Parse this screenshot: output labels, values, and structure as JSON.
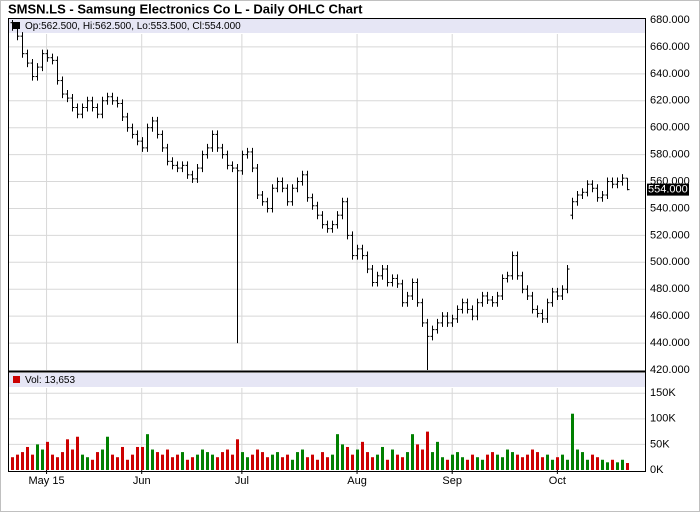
{
  "chart_data": {
    "type": "ohlc",
    "title": "SMSN.LS - Samsung Electronics Co L - Daily OHLC Chart",
    "info": "Op:562.500, Hi:562.500, Lo:553.500, Cl:554.000",
    "last_label": "554.000",
    "grid": true,
    "xlim": [
      -0.5,
      126.5
    ],
    "xticks": [
      {
        "value": 7,
        "label": "May 15"
      },
      {
        "value": 26,
        "label": "Jun"
      },
      {
        "value": 46,
        "label": "Jul"
      },
      {
        "value": 69,
        "label": "Aug"
      },
      {
        "value": 88,
        "label": "Sep"
      },
      {
        "value": 109,
        "label": "Oct"
      }
    ],
    "ylim": [
      420,
      680
    ],
    "yticks": [
      {
        "value": 420,
        "label": "420.000"
      },
      {
        "value": 440,
        "label": "440.000"
      },
      {
        "value": 460,
        "label": "460.000"
      },
      {
        "value": 480,
        "label": "480.000"
      },
      {
        "value": 500,
        "label": "500.000"
      },
      {
        "value": 520,
        "label": "520.000"
      },
      {
        "value": 540,
        "label": "540.000"
      },
      {
        "value": 560,
        "label": "560.000"
      },
      {
        "value": 580,
        "label": "580.000"
      },
      {
        "value": 600,
        "label": "600.000"
      },
      {
        "value": 620,
        "label": "620.000"
      },
      {
        "value": 640,
        "label": "640.000"
      },
      {
        "value": 660,
        "label": "660.000"
      },
      {
        "value": 680,
        "label": "680.000"
      }
    ],
    "color": "#000000",
    "open": [
      678,
      675,
      668,
      655,
      648,
      638,
      645,
      655,
      652,
      650,
      635,
      625,
      622,
      615,
      610,
      615,
      620,
      615,
      610,
      620,
      623,
      620,
      618,
      608,
      600,
      595,
      590,
      585,
      600,
      605,
      595,
      585,
      575,
      572,
      570,
      572,
      565,
      562,
      570,
      580,
      585,
      595,
      585,
      580,
      572,
      570,
      568,
      580,
      582,
      570,
      550,
      545,
      540,
      555,
      560,
      555,
      545,
      555,
      560,
      565,
      548,
      542,
      535,
      528,
      525,
      528,
      535,
      545,
      520,
      505,
      510,
      505,
      495,
      485,
      490,
      495,
      485,
      488,
      484,
      470,
      475,
      485,
      470,
      455,
      445,
      450,
      455,
      460,
      455,
      458,
      465,
      470,
      465,
      460,
      470,
      475,
      472,
      470,
      475,
      488,
      490,
      505,
      490,
      480,
      475,
      465,
      462,
      458,
      470,
      478,
      475,
      480,
      535,
      545,
      550,
      552,
      558,
      555,
      548,
      550,
      560,
      558,
      560,
      562.5
    ],
    "high": [
      680,
      678,
      671,
      658,
      651,
      648,
      658,
      658,
      655,
      653,
      638,
      628,
      625,
      618,
      618,
      623,
      623,
      618,
      623,
      626,
      626,
      623,
      621,
      611,
      603,
      598,
      593,
      603,
      608,
      608,
      598,
      588,
      578,
      575,
      575,
      575,
      568,
      573,
      583,
      588,
      598,
      598,
      588,
      583,
      575,
      573,
      583,
      585,
      585,
      573,
      553,
      548,
      558,
      563,
      563,
      558,
      558,
      563,
      568,
      568,
      551,
      545,
      538,
      531,
      531,
      538,
      548,
      548,
      523,
      513,
      513,
      508,
      498,
      493,
      498,
      498,
      491,
      491,
      487,
      478,
      488,
      488,
      473,
      458,
      453,
      458,
      463,
      463,
      461,
      468,
      473,
      473,
      468,
      473,
      478,
      478,
      475,
      478,
      491,
      493,
      508,
      508,
      493,
      483,
      478,
      468,
      465,
      473,
      481,
      481,
      483,
      498,
      548,
      553,
      555,
      561,
      561,
      558,
      553,
      563,
      563,
      563,
      565.5,
      562.5
    ],
    "low": [
      672,
      665,
      652,
      645,
      635,
      635,
      642,
      649,
      647,
      632,
      622,
      619,
      612,
      607,
      607,
      612,
      612,
      607,
      607,
      617,
      617,
      615,
      605,
      597,
      592,
      587,
      582,
      582,
      597,
      592,
      582,
      572,
      569,
      567,
      567,
      562,
      559,
      559,
      567,
      577,
      582,
      582,
      577,
      569,
      567,
      440,
      565,
      577,
      567,
      547,
      542,
      537,
      537,
      552,
      552,
      542,
      542,
      552,
      557,
      545,
      539,
      532,
      525,
      522,
      522,
      525,
      532,
      517,
      502,
      502,
      502,
      492,
      482,
      482,
      487,
      482,
      482,
      481,
      467,
      467,
      472,
      467,
      452,
      420,
      442,
      447,
      452,
      452,
      452,
      455,
      462,
      462,
      457,
      457,
      467,
      469,
      467,
      467,
      472,
      485,
      487,
      487,
      477,
      472,
      462,
      459,
      455,
      455,
      467,
      472,
      472,
      477,
      532,
      542,
      547,
      549,
      552,
      545,
      545,
      547,
      555,
      555,
      557,
      553.5
    ],
    "close": [
      675,
      668,
      655,
      648,
      638,
      645,
      655,
      652,
      650,
      635,
      625,
      622,
      615,
      610,
      615,
      620,
      615,
      610,
      620,
      623,
      620,
      618,
      608,
      600,
      595,
      590,
      585,
      600,
      605,
      595,
      585,
      575,
      572,
      570,
      572,
      565,
      562,
      570,
      580,
      585,
      595,
      585,
      580,
      572,
      570,
      568,
      580,
      582,
      570,
      550,
      545,
      540,
      555,
      560,
      555,
      545,
      555,
      560,
      565,
      548,
      542,
      535,
      528,
      525,
      528,
      535,
      545,
      520,
      505,
      510,
      505,
      495,
      485,
      490,
      495,
      485,
      488,
      484,
      470,
      475,
      485,
      470,
      455,
      445,
      450,
      455,
      460,
      455,
      458,
      465,
      470,
      465,
      460,
      470,
      475,
      472,
      470,
      475,
      488,
      490,
      505,
      490,
      480,
      475,
      465,
      462,
      458,
      470,
      478,
      475,
      480,
      495,
      545,
      550,
      552,
      558,
      555,
      548,
      550,
      560,
      558,
      560,
      562.5,
      554
    ],
    "volume": {
      "info": "Vol: 13,653",
      "ylim": [
        0,
        170000
      ],
      "yticks": [
        {
          "value": 0,
          "label": "0K"
        },
        {
          "value": 50000,
          "label": "50K"
        },
        {
          "value": 100000,
          "label": "100K"
        },
        {
          "value": 150000,
          "label": "150K"
        }
      ],
      "up_color": "#008000",
      "down_color": "#cc0000",
      "flat_color": "#00008b",
      "values": [
        25000,
        30000,
        35000,
        45000,
        30000,
        50000,
        40000,
        55000,
        30000,
        25000,
        35000,
        60000,
        40000,
        65000,
        30000,
        25000,
        20000,
        35000,
        40000,
        65000,
        30000,
        25000,
        45000,
        20000,
        30000,
        45000,
        45000,
        70000,
        40000,
        35000,
        30000,
        40000,
        25000,
        30000,
        35000,
        20000,
        25000,
        30000,
        40000,
        35000,
        30000,
        25000,
        35000,
        40000,
        30000,
        60000,
        35000,
        25000,
        30000,
        40000,
        35000,
        25000,
        30000,
        35000,
        25000,
        30000,
        20000,
        35000,
        40000,
        25000,
        30000,
        20000,
        35000,
        25000,
        30000,
        70000,
        50000,
        45000,
        30000,
        40000,
        55000,
        35000,
        25000,
        30000,
        45000,
        20000,
        40000,
        30000,
        25000,
        35000,
        70000,
        50000,
        40000,
        75000,
        35000,
        55000,
        25000,
        20000,
        30000,
        35000,
        25000,
        20000,
        30000,
        25000,
        20000,
        30000,
        35000,
        30000,
        25000,
        40000,
        35000,
        30000,
        25000,
        30000,
        40000,
        35000,
        25000,
        30000,
        20000,
        25000,
        30000,
        20000,
        110000,
        40000,
        35000,
        20000,
        30000,
        25000,
        20000,
        15000,
        20000,
        15000,
        20000,
        13653
      ]
    }
  }
}
